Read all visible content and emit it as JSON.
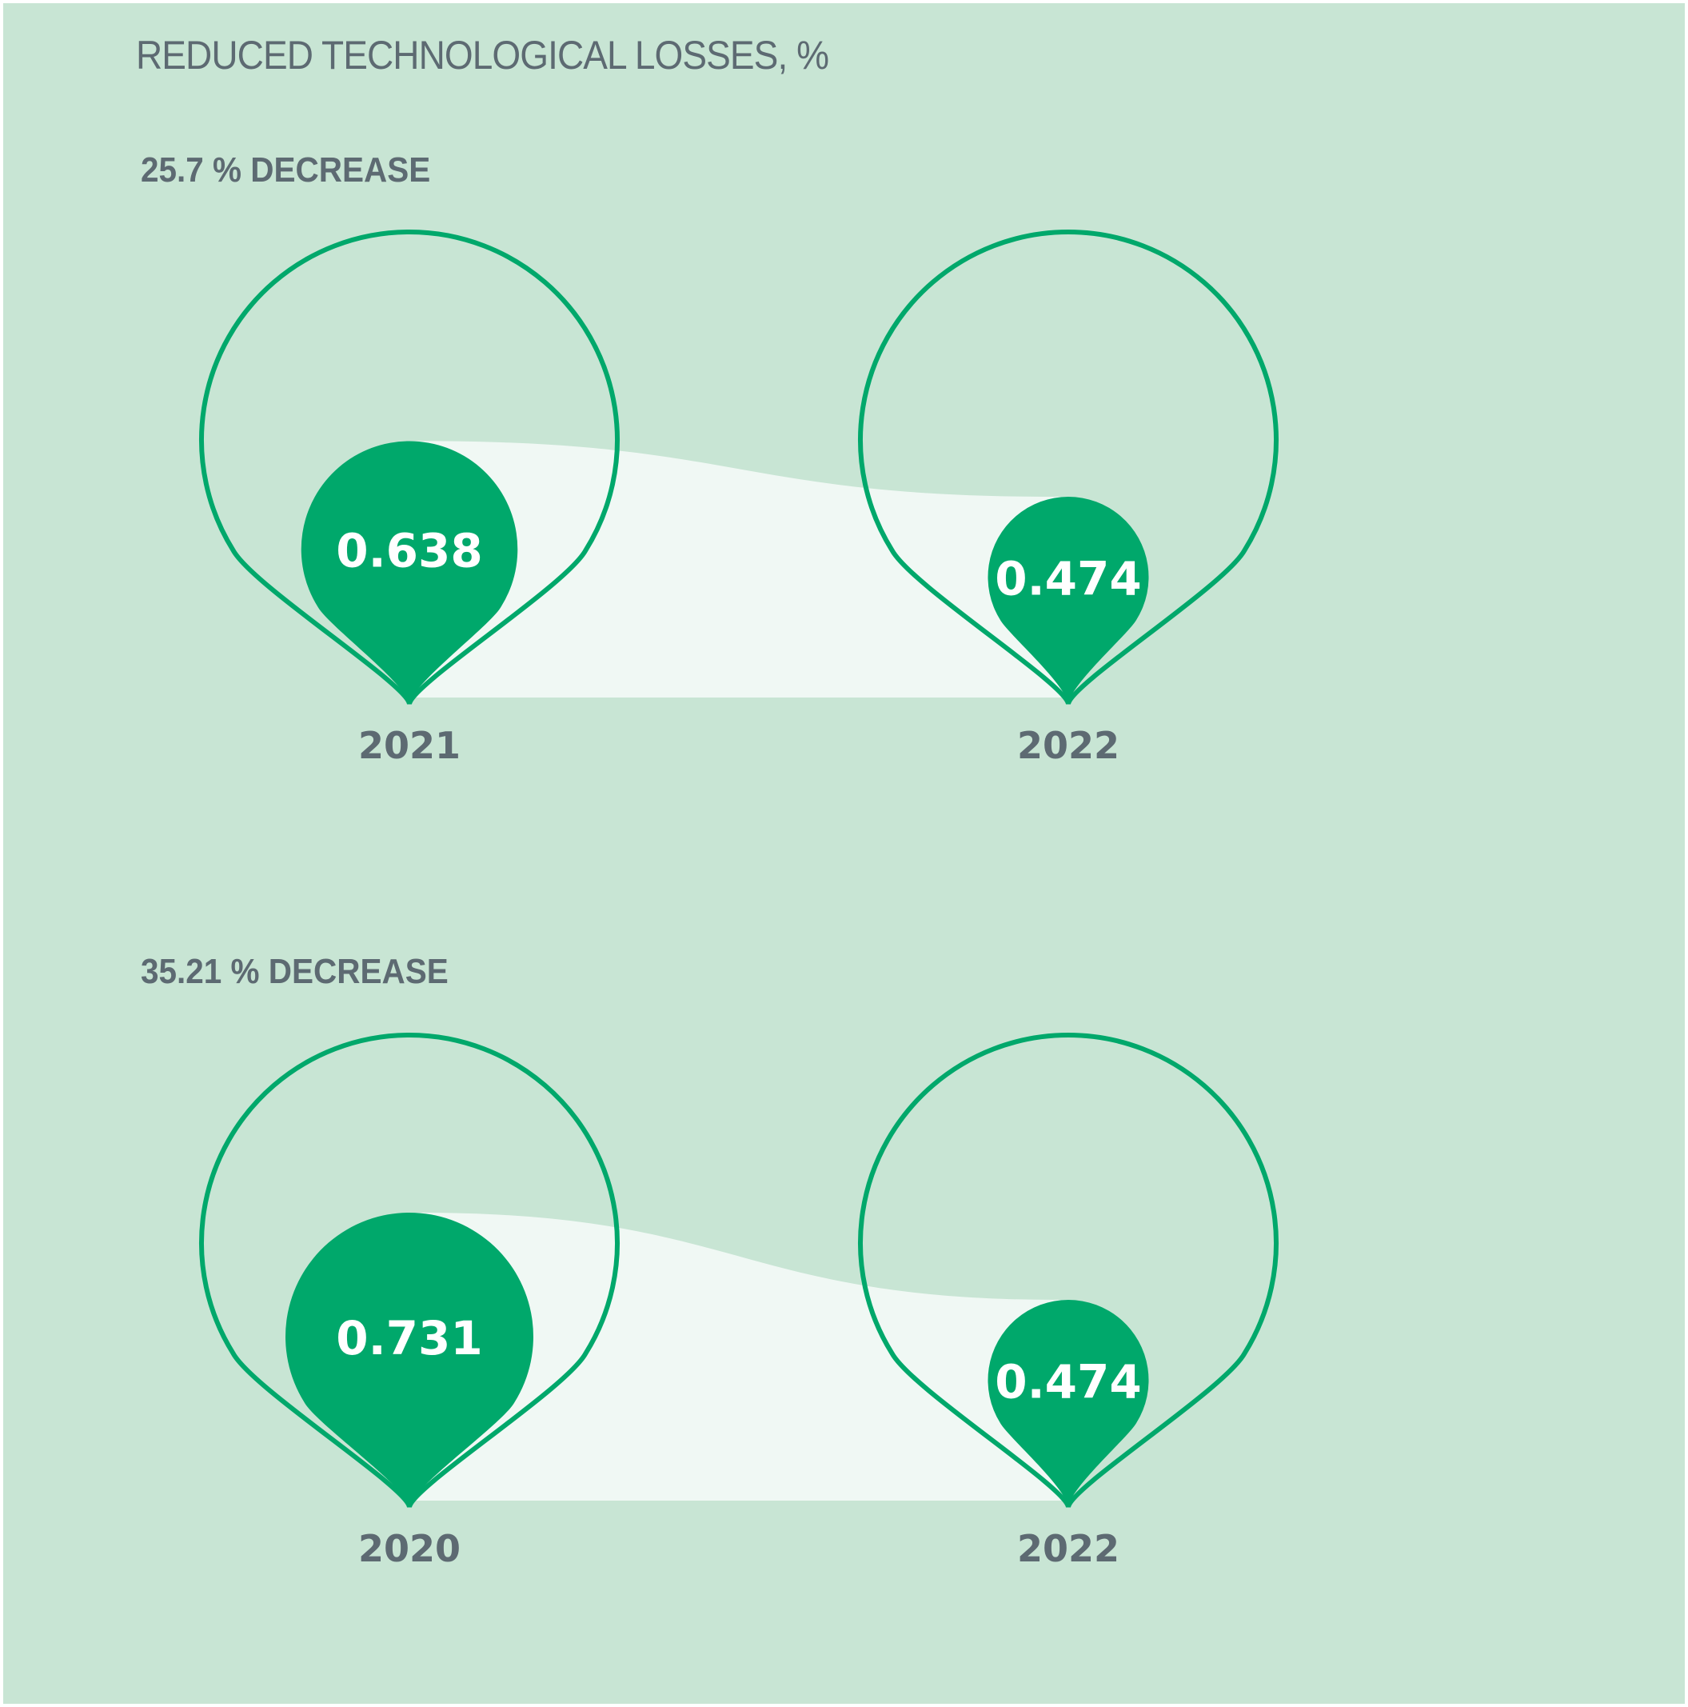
{
  "title": "REDUCED TECHNOLOGICAL LOSSES, %",
  "colors": {
    "background": "#c8e5d4",
    "accent": "#00a86b",
    "flow": "#f0f8f4",
    "text": "#5d6a72"
  },
  "chart_data": [
    {
      "type": "bubble-comparison",
      "subtitle": "25.7 % DECREASE",
      "unit": "%",
      "categories": [
        "2021",
        "2022"
      ],
      "values": [
        0.638,
        0.474
      ],
      "value_labels": [
        "0.638",
        "0.474"
      ]
    },
    {
      "type": "bubble-comparison",
      "subtitle": "35.21 % DECREASE",
      "unit": "%",
      "categories": [
        "2020",
        "2022"
      ],
      "values": [
        0.731,
        0.474
      ],
      "value_labels": [
        "0.731",
        "0.474"
      ]
    }
  ]
}
